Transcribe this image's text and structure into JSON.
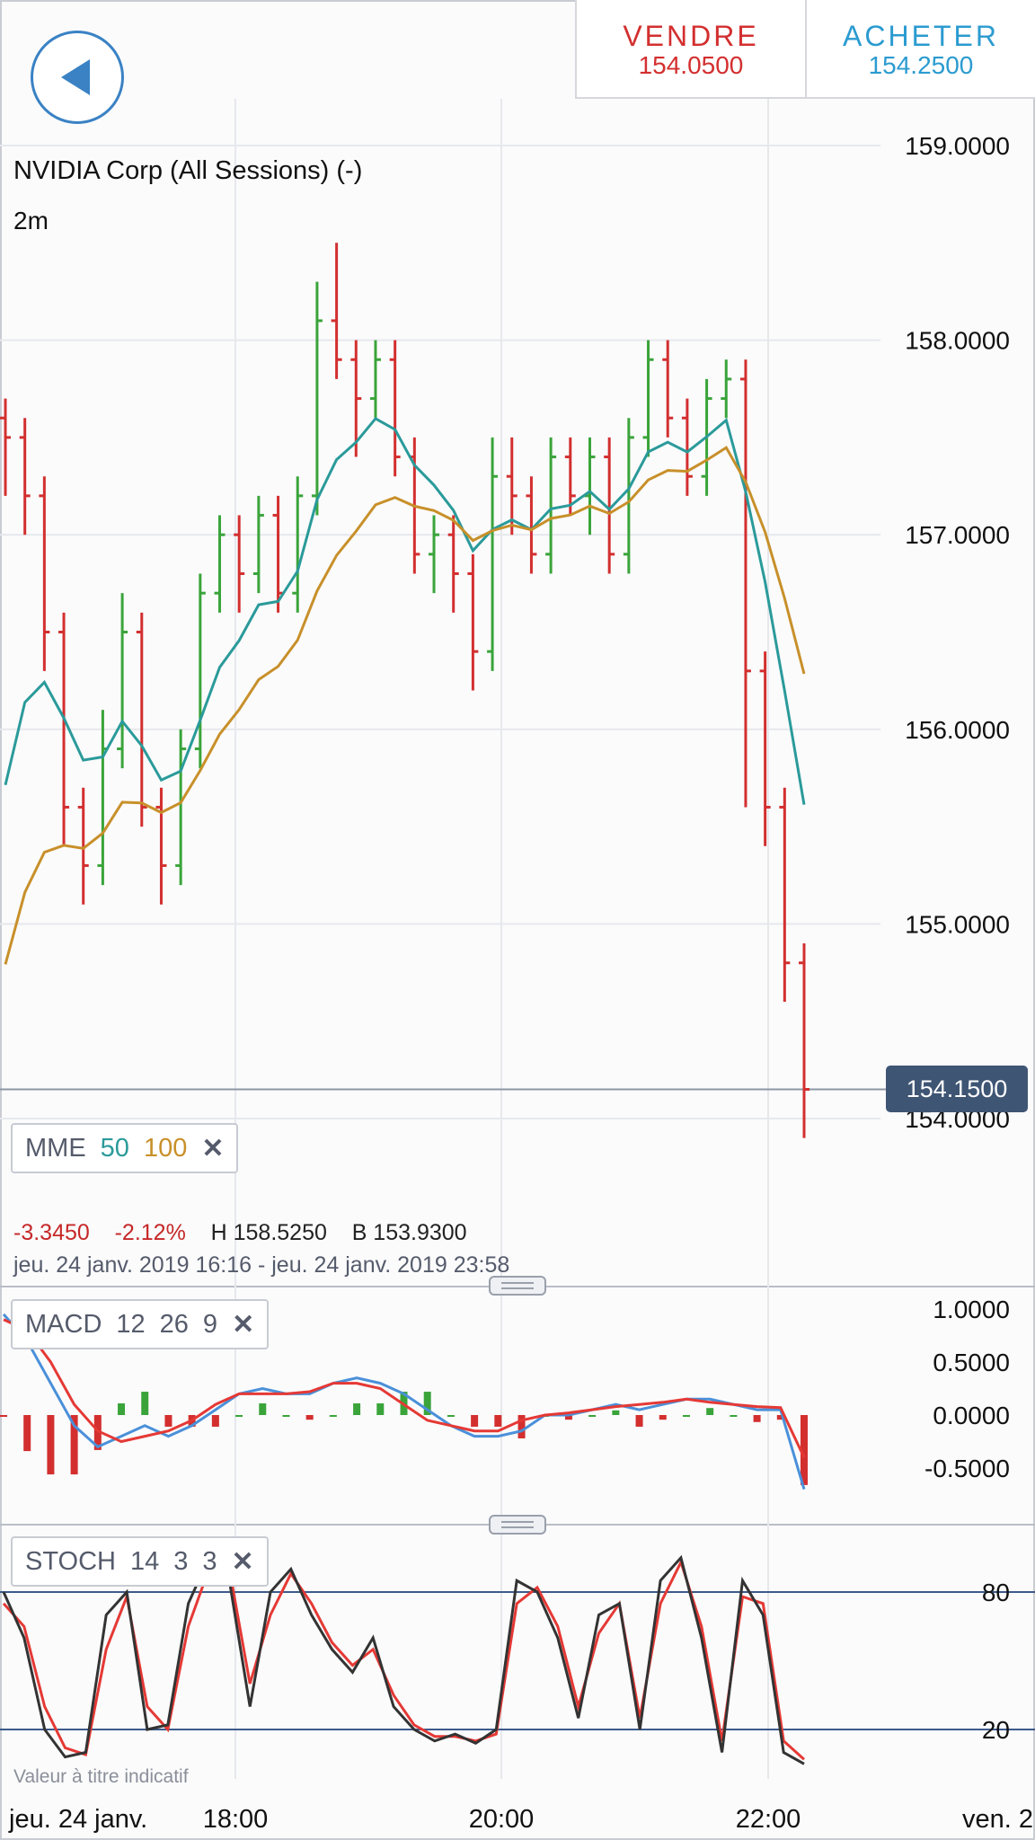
{
  "header": {
    "sell_label": "VENDRE",
    "sell_price": "154.0500",
    "buy_label": "ACHETER",
    "buy_price": "154.2500"
  },
  "instrument": {
    "title": "NVIDIA Corp (All Sessions) (-)",
    "timeframe": "2m"
  },
  "current_price": "154.1500",
  "indicators": {
    "mme": {
      "name": "MME",
      "p1": "50",
      "p2": "100",
      "p1_color": "#2b9a9a",
      "p2_color": "#c8902a"
    },
    "macd": {
      "name": "MACD",
      "p1": "12",
      "p2": "26",
      "p3": "9"
    },
    "stoch": {
      "name": "STOCH",
      "p1": "14",
      "p2": "3",
      "p3": "3"
    }
  },
  "stats": {
    "change": "-3.3450",
    "change_pct": "-2.12%",
    "high": "H 158.5250",
    "low": "B 153.9300",
    "range": "jeu. 24 janv. 2019 16:16 - jeu. 24 janv. 2019 23:58"
  },
  "disclaimer": "Valeur à titre indicatif",
  "colors": {
    "up": "#3aa43a",
    "down": "#d32f2f",
    "sell": "#d32f2f",
    "buy": "#2b9bd0",
    "grid": "#e6e8ec",
    "level_line": "#3c5a8a"
  },
  "chart_data": [
    {
      "type": "candlestick",
      "title": "NVIDIA Corp (All Sessions) (-)",
      "y_ticks": [
        "159.0000",
        "158.0000",
        "157.0000",
        "156.0000",
        "155.0000",
        "154.0000"
      ],
      "ylim": [
        153.0,
        159.5
      ],
      "x_ticks": [
        "jeu. 24 janv.",
        "18:00",
        "20:00",
        "22:00",
        "ven. 2"
      ],
      "ohlc_approx": [
        [
          157.6,
          157.7,
          157.2,
          157.5
        ],
        [
          157.5,
          157.6,
          157.0,
          157.2
        ],
        [
          157.2,
          157.3,
          156.3,
          156.5
        ],
        [
          156.5,
          156.6,
          155.4,
          155.6
        ],
        [
          155.6,
          155.7,
          155.1,
          155.3
        ],
        [
          155.3,
          156.1,
          155.2,
          155.9
        ],
        [
          155.9,
          156.7,
          155.8,
          156.5
        ],
        [
          156.5,
          156.6,
          155.5,
          155.6
        ],
        [
          155.6,
          155.7,
          155.1,
          155.3
        ],
        [
          155.3,
          156.0,
          155.2,
          155.9
        ],
        [
          155.9,
          156.8,
          155.8,
          156.7
        ],
        [
          156.7,
          157.1,
          156.6,
          157.0
        ],
        [
          157.0,
          157.1,
          156.6,
          156.8
        ],
        [
          156.8,
          157.2,
          156.7,
          157.1
        ],
        [
          157.1,
          157.2,
          156.6,
          156.7
        ],
        [
          156.7,
          157.3,
          156.6,
          157.2
        ],
        [
          157.2,
          158.3,
          157.1,
          158.1
        ],
        [
          158.1,
          158.5,
          157.8,
          157.9
        ],
        [
          157.9,
          158.0,
          157.4,
          157.7
        ],
        [
          157.7,
          158.0,
          157.6,
          157.9
        ],
        [
          157.9,
          158.0,
          157.3,
          157.4
        ],
        [
          157.4,
          157.5,
          156.8,
          156.9
        ],
        [
          156.9,
          157.1,
          156.7,
          157.0
        ],
        [
          157.0,
          157.1,
          156.6,
          156.8
        ],
        [
          156.8,
          156.9,
          156.2,
          156.4
        ],
        [
          156.4,
          157.5,
          156.3,
          157.3
        ],
        [
          157.3,
          157.5,
          157.0,
          157.2
        ],
        [
          157.2,
          157.3,
          156.8,
          156.9
        ],
        [
          156.9,
          157.5,
          156.8,
          157.4
        ],
        [
          157.4,
          157.5,
          157.1,
          157.2
        ],
        [
          157.2,
          157.5,
          157.0,
          157.4
        ],
        [
          157.4,
          157.5,
          156.8,
          156.9
        ],
        [
          156.9,
          157.6,
          156.8,
          157.5
        ],
        [
          157.5,
          158.0,
          157.4,
          157.9
        ],
        [
          157.9,
          158.0,
          157.5,
          157.6
        ],
        [
          157.6,
          157.7,
          157.2,
          157.3
        ],
        [
          157.3,
          157.8,
          157.2,
          157.7
        ],
        [
          157.7,
          157.9,
          157.6,
          157.8
        ],
        [
          157.8,
          157.9,
          155.6,
          156.3
        ],
        [
          156.3,
          156.4,
          155.4,
          155.6
        ],
        [
          155.6,
          155.7,
          154.6,
          154.8
        ],
        [
          154.8,
          154.9,
          153.9,
          154.15
        ]
      ]
    },
    {
      "type": "line",
      "title": "MACD",
      "y_ticks": [
        "1.0000",
        "0.5000",
        "0.0000",
        "-0.5000"
      ],
      "ylim": [
        -0.75,
        1.15
      ],
      "series": [
        {
          "name": "MACD",
          "values": [
            0.95,
            0.7,
            0.3,
            -0.1,
            -0.3,
            -0.2,
            -0.1,
            -0.2,
            -0.1,
            0.05,
            0.2,
            0.25,
            0.2,
            0.2,
            0.3,
            0.35,
            0.3,
            0.2,
            0.05,
            -0.1,
            -0.2,
            -0.2,
            -0.15,
            0.0,
            0.0,
            0.05,
            0.1,
            0.05,
            0.1,
            0.15,
            0.15,
            0.1,
            0.05,
            0.05,
            -0.7
          ]
        },
        {
          "name": "Signal",
          "values": [
            0.9,
            0.8,
            0.5,
            0.1,
            -0.15,
            -0.25,
            -0.2,
            -0.15,
            -0.05,
            0.1,
            0.2,
            0.2,
            0.2,
            0.22,
            0.3,
            0.3,
            0.25,
            0.1,
            -0.05,
            -0.1,
            -0.15,
            -0.15,
            -0.05,
            0.0,
            0.02,
            0.05,
            0.08,
            0.1,
            0.12,
            0.15,
            0.12,
            0.1,
            0.08,
            0.07,
            -0.4
          ]
        }
      ]
    },
    {
      "type": "line",
      "title": "STOCH",
      "y_ticks": [
        "80",
        "20"
      ],
      "ylim": [
        0,
        100
      ],
      "series": [
        {
          "name": "%K",
          "values": [
            80,
            60,
            20,
            8,
            10,
            70,
            80,
            20,
            22,
            75,
            95,
            85,
            30,
            80,
            90,
            70,
            55,
            45,
            60,
            30,
            20,
            15,
            18,
            14,
            20,
            85,
            80,
            60,
            25,
            70,
            75,
            20,
            85,
            95,
            60,
            10,
            85,
            70,
            10,
            5
          ]
        },
        {
          "name": "%D",
          "values": [
            75,
            65,
            30,
            12,
            9,
            55,
            78,
            30,
            20,
            65,
            90,
            90,
            40,
            70,
            88,
            75,
            58,
            48,
            55,
            35,
            22,
            17,
            17,
            15,
            18,
            75,
            82,
            65,
            30,
            62,
            75,
            25,
            75,
            93,
            65,
            15,
            78,
            75,
            15,
            7
          ]
        }
      ]
    }
  ]
}
